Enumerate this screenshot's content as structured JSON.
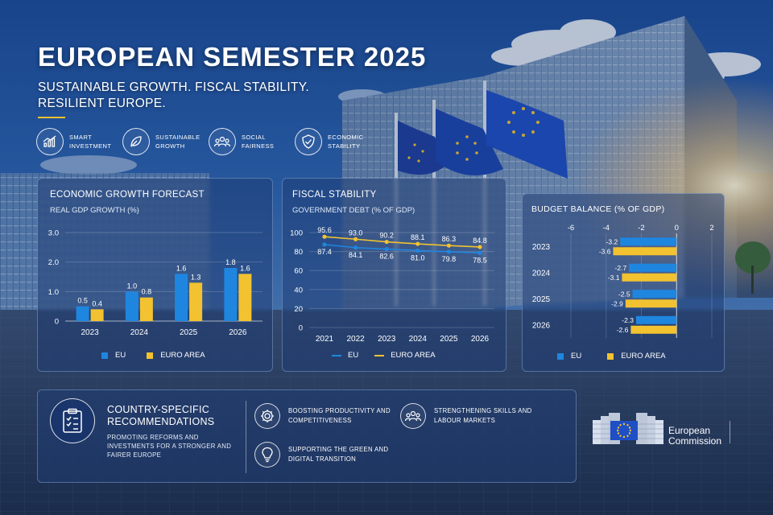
{
  "header": {
    "title": "EUROPEAN SEMESTER 2025",
    "subtitle": "SUSTAINABLE GROWTH. FISCAL STABILITY. RESILIENT EUROPE."
  },
  "pillars": [
    {
      "label": "SMART INVESTMENT",
      "icon": "growth-chart-icon"
    },
    {
      "label": "SUSTAINABLE GROWTH",
      "icon": "leaf-icon"
    },
    {
      "label": "SOCIAL FAIRNESS",
      "icon": "people-icon"
    },
    {
      "label": "ECONOMIC STABILITY",
      "icon": "shield-check-icon"
    }
  ],
  "colors": {
    "eu": "#1f86e0",
    "euro_area": "#f2c230",
    "accent": "#f2c230",
    "panel": "#1e3c73"
  },
  "chart_data": [
    {
      "type": "bar",
      "title": "ECONOMIC GROWTH FORECAST",
      "subtitle": "REAL GDP GROWTH (%)",
      "categories": [
        "2023",
        "2024",
        "2025",
        "2026"
      ],
      "series": [
        {
          "name": "EU",
          "values": [
            0.5,
            1.0,
            1.6,
            1.8
          ]
        },
        {
          "name": "EURO AREA",
          "values": [
            0.4,
            0.8,
            1.3,
            1.6
          ]
        }
      ],
      "ylim": [
        0,
        3.0
      ],
      "yticks": [
        "0",
        "1.0",
        "2.0",
        "3.0"
      ],
      "grid": true,
      "legend": "bottom"
    },
    {
      "type": "line",
      "title": "FISCAL STABILITY",
      "subtitle": "GOVERNMENT DEBT (% OF GDP)",
      "x": [
        "2021",
        "2022",
        "2023",
        "2024",
        "2025",
        "2026"
      ],
      "series": [
        {
          "name": "EU",
          "values": [
            87.4,
            84.1,
            82.6,
            81.0,
            79.8,
            78.5
          ]
        },
        {
          "name": "EURO AREA",
          "values": [
            95.6,
            93.0,
            90.2,
            88.1,
            86.3,
            84.8
          ]
        }
      ],
      "ylim": [
        0,
        100
      ],
      "yticks": [
        "0",
        "20",
        "40",
        "60",
        "80",
        "100"
      ],
      "grid": true,
      "legend": "bottom"
    },
    {
      "type": "bar",
      "orientation": "horizontal",
      "title": "BUDGET BALANCE (% OF GDP)",
      "categories": [
        "2023",
        "2024",
        "2025",
        "2026"
      ],
      "series": [
        {
          "name": "EU",
          "values": [
            -3.2,
            -2.7,
            -2.5,
            -2.3
          ]
        },
        {
          "name": "EURO AREA",
          "values": [
            -3.6,
            -3.1,
            -2.9,
            -2.6
          ]
        }
      ],
      "xlim": [
        -6,
        2
      ],
      "xticks": [
        "-6",
        "-4",
        "-2",
        "0",
        "2"
      ],
      "grid": true,
      "legend": "bottom"
    }
  ],
  "recommendations": {
    "title": "COUNTRY-SPECIFIC RECOMMENDATIONS",
    "text": "PROMOTING REFORMS AND INVESTMENTS FOR A STRONGER AND FAIRER EUROPE",
    "icon": "clipboard-checklist-icon",
    "items": [
      {
        "label": "BOOSTING PRODUCTIVITY AND COMPETITIVENESS",
        "icon": "gear-icon"
      },
      {
        "label": "STRENGTHENING SKILLS AND LABOUR MARKETS",
        "icon": "people-icon"
      },
      {
        "label": "SUPPORTING THE GREEN AND DIGITAL TRANSITION",
        "icon": "lightbulb-icon"
      }
    ]
  },
  "logo": {
    "name_line1": "European",
    "name_line2": "Commission"
  }
}
